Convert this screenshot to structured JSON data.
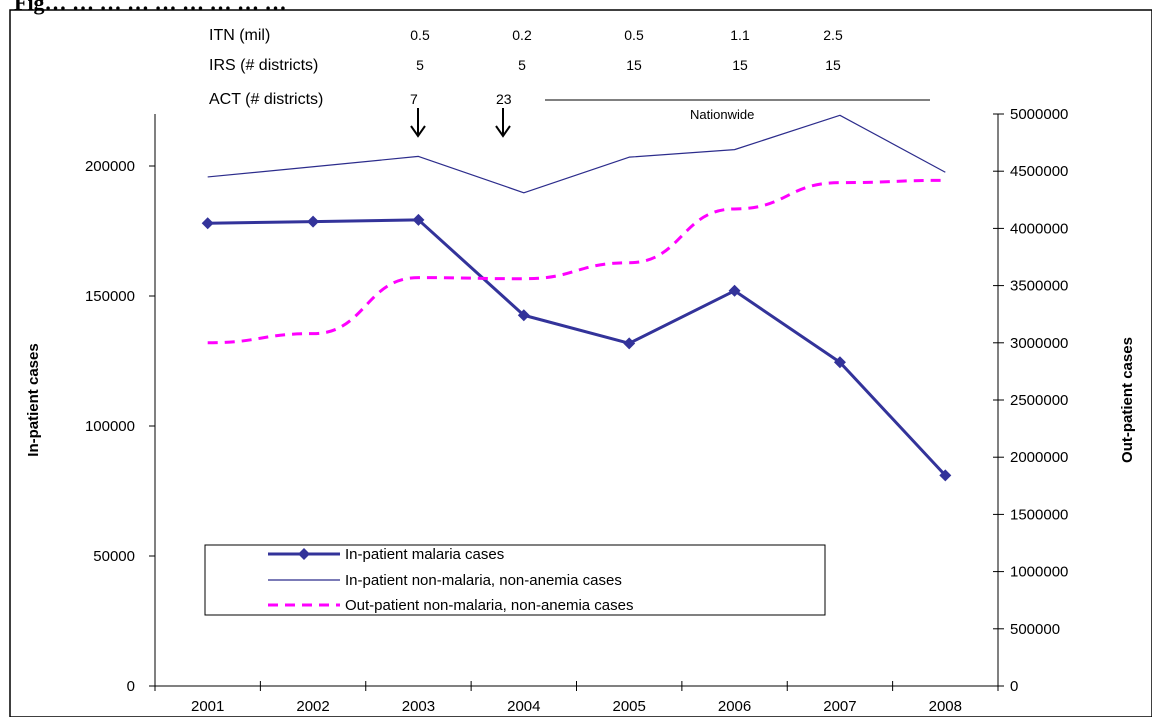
{
  "caption": "Fig… … … … … … … … …",
  "interventions": {
    "itn": {
      "label": "ITN (mil)",
      "values": [
        "0.5",
        "0.2",
        "0.5",
        "1.1",
        "2.5"
      ]
    },
    "irs": {
      "label": "IRS (# districts)",
      "values": [
        "5",
        "5",
        "15",
        "15",
        "15"
      ]
    },
    "act": {
      "label": "ACT (# districts)",
      "values": [
        "7",
        "23"
      ],
      "nationwide_label": "Nationwide"
    }
  },
  "colors": {
    "inpatient_malaria": "#33339a",
    "inpatient_non_malaria": "#2c2c8c",
    "outpatient": "#ff00ff",
    "axis": "#000000"
  },
  "chart_data": {
    "type": "line",
    "categories": [
      "2001",
      "2002",
      "2003",
      "2004",
      "2005",
      "2006",
      "2007",
      "2008"
    ],
    "ylabel": "In-patient cases",
    "y2label": "Out-patient cases",
    "ylim": [
      0,
      220000
    ],
    "y2lim": [
      0,
      5000000
    ],
    "yticks": [
      "0",
      "50000",
      "100000",
      "150000",
      "200000"
    ],
    "y2ticks": [
      "0",
      "500000",
      "1000000",
      "1500000",
      "2000000",
      "2500000",
      "3000000",
      "3500000",
      "4000000",
      "4500000",
      "5000000"
    ],
    "grid": false,
    "legend_position": "bottom-left",
    "series": [
      {
        "name": "In-patient malaria cases",
        "axis": "left",
        "style": "line-diamond",
        "values": [
          178000,
          178600,
          179300,
          142600,
          131800,
          152000,
          124500,
          81000
        ]
      },
      {
        "name": "In-patient non-malaria, non-anemia cases",
        "axis": "left",
        "style": "thin-line",
        "values": [
          195800,
          199700,
          203700,
          189700,
          203400,
          206300,
          219500,
          197600
        ]
      },
      {
        "name": "Out-patient non-malaria, non-anemia cases",
        "axis": "right",
        "style": "dashed",
        "values": [
          3000000,
          3080000,
          3570000,
          3560000,
          3700000,
          4170000,
          4400000,
          4420000
        ]
      }
    ]
  }
}
